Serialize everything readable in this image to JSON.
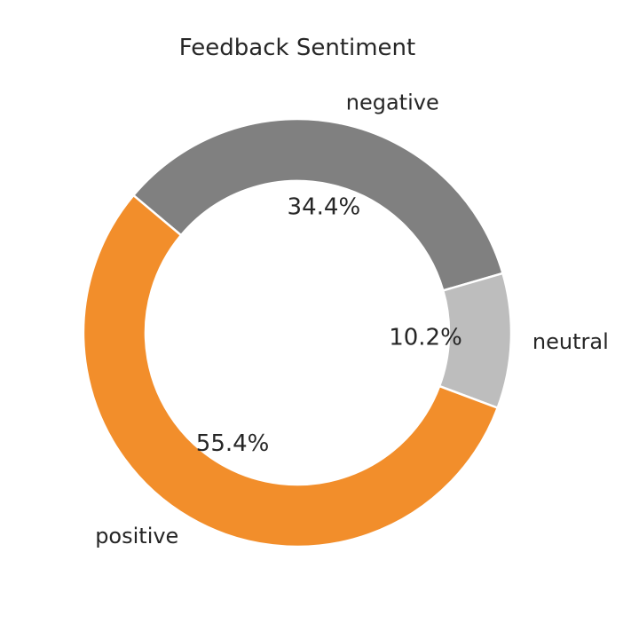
{
  "chart_data": {
    "type": "pie",
    "style": "donut",
    "title": "Feedback Sentiment",
    "slices": [
      {
        "label": "negative",
        "value": 34.4,
        "pct_label": "34.4%",
        "color": "#808080"
      },
      {
        "label": "neutral",
        "value": 10.2,
        "pct_label": "10.2%",
        "color": "#bdbdbd"
      },
      {
        "label": "positive",
        "value": 55.4,
        "pct_label": "55.4%",
        "color": "#f28e2b"
      }
    ],
    "start_angle_deg": 140,
    "direction": "clockwise",
    "legend": "none"
  }
}
